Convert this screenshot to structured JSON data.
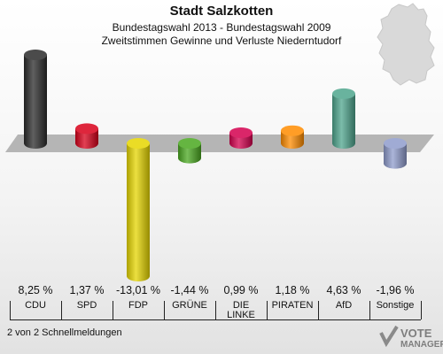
{
  "header": {
    "title": "Stadt Salzkotten",
    "subtitle1": "Bundestagswahl 2013 - Bundestagswahl 2009",
    "subtitle2": "Zweitstimmen Gewinne und Verluste Niederntudorf"
  },
  "footer": {
    "text": "2 von 2 Schnellmeldungen"
  },
  "logo": {
    "line1": "VOTE",
    "line2": "MANAGER"
  },
  "chart_data": {
    "type": "bar",
    "categories": [
      "CDU",
      "SPD",
      "FDP",
      "GRÜNE",
      "DIE LINKE",
      "PIRATEN",
      "AfD",
      "Sonstige"
    ],
    "category_labels": [
      "CDU",
      "SPD",
      "FDP",
      "GRÜNE",
      "DIE\nLINKE",
      "PIRATEN",
      "AfD",
      "Sonstige"
    ],
    "values": [
      8.25,
      1.37,
      -13.01,
      -1.44,
      0.99,
      1.18,
      4.63,
      -1.96
    ],
    "value_labels": [
      "8,25 %",
      "1,37 %",
      "-13,01 %",
      "-1,44 %",
      "0,99 %",
      "1,18 %",
      "4,63 %",
      "-1,96 %"
    ],
    "colors": [
      "#2b2b2b",
      "#d8001a",
      "#e6d600",
      "#4aa820",
      "#d4004e",
      "#ff8c00",
      "#4fa58d",
      "#8f9ccc"
    ],
    "ylim": [
      -13.01,
      8.25
    ]
  }
}
